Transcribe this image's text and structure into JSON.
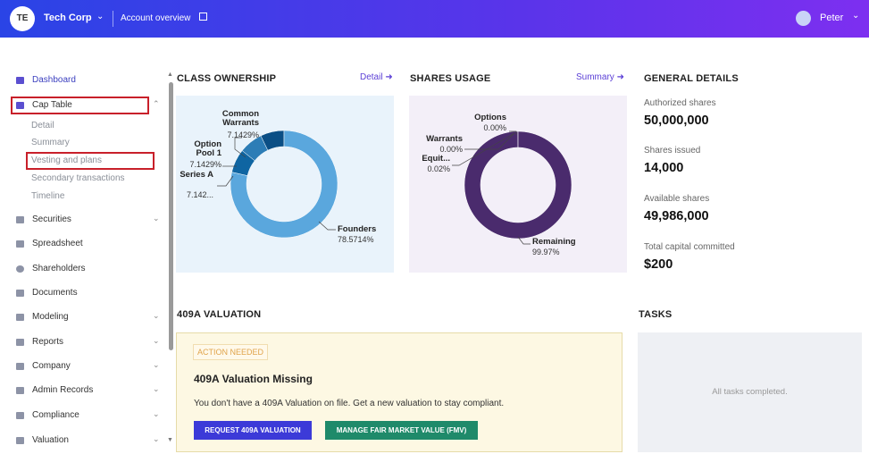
{
  "header": {
    "avatar": "TE",
    "company": "Tech Corp",
    "link": "Account overview",
    "user": "Peter"
  },
  "sidebar": {
    "items": [
      "Dashboard",
      "Cap Table",
      "Securities",
      "Spreadsheet",
      "Shareholders",
      "Documents",
      "Modeling",
      "Reports",
      "Company",
      "Admin Records",
      "Compliance",
      "Valuation"
    ],
    "sub_items": [
      "Detail",
      "Summary",
      "Vesting and plans",
      "Secondary transactions",
      "Timeline"
    ]
  },
  "class_ownership": {
    "title": "CLASS OWNERSHIP",
    "link": "Detail",
    "type": "donut",
    "segments": [
      {
        "name": "Founders",
        "value": 78.5714,
        "value_label": "78.5714%",
        "color": "#5aa7dd"
      },
      {
        "name": "Series A",
        "value": 7.1429,
        "value_label": "7.142...",
        "color": "#0f65a2"
      },
      {
        "name": "Option Pool 1",
        "value": 7.1429,
        "value_label": "7.1429%",
        "color": "#2d7db6"
      },
      {
        "name": "Common Warrants",
        "value": 7.1429,
        "value_label": "7.1429%",
        "color": "#0b4f85"
      }
    ]
  },
  "shares_usage": {
    "title": "SHARES USAGE",
    "link": "Summary",
    "type": "donut",
    "segments": [
      {
        "name": "Remaining",
        "value": 99.97,
        "value_label": "99.97%",
        "color": "#4a2b6d"
      },
      {
        "name": "Equit...",
        "value": 0.02,
        "value_label": "0.02%",
        "color": "#8c6bb1"
      },
      {
        "name": "Warrants",
        "value": 0,
        "value_label": "0.00%",
        "color": "#b39cd0"
      },
      {
        "name": "Options",
        "value": 0,
        "value_label": "0.00%",
        "color": "#d7cbe6"
      }
    ]
  },
  "general_details": {
    "title": "GENERAL DETAILS",
    "items": [
      {
        "label": "Authorized shares",
        "value": "50,000,000"
      },
      {
        "label": "Shares issued",
        "value": "14,000"
      },
      {
        "label": "Available shares",
        "value": "49,986,000"
      },
      {
        "label": "Total capital committed",
        "value": "$200"
      }
    ]
  },
  "valuation": {
    "title": "409A VALUATION",
    "badge": "ACTION NEEDED",
    "heading": "409A Valuation Missing",
    "text": "You don't have a 409A Valuation on file. Get a new valuation to stay compliant.",
    "button_primary": "REQUEST 409A VALUATION",
    "button_secondary": "MANAGE FAIR MARKET VALUE (FMV)"
  },
  "tasks": {
    "title": "TASKS",
    "empty": "All tasks completed."
  }
}
